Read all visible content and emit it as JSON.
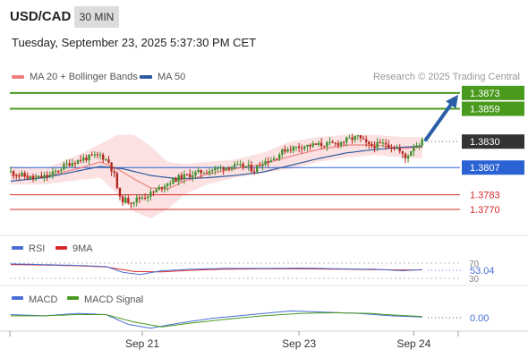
{
  "header": {
    "symbol": "USD/CAD",
    "timeframe": "30 MIN",
    "datetime": "Tuesday, September 23, 2025 5:37:30 PM CET"
  },
  "legend": {
    "items": [
      {
        "label": "MA 20 + Bollinger Bands",
        "color": "#f08080"
      },
      {
        "label": "MA 50",
        "color": "#2f5aa0"
      }
    ],
    "credit": "Research © 2025 Trading Central"
  },
  "chart_data": [
    {
      "type": "candlestick",
      "title": "USD/CAD",
      "ylim": [
        1.3751,
        1.388
      ],
      "n_bars": 150,
      "x_tick_labels": [
        {
          "label": "Sep 21",
          "bar": 47
        },
        {
          "label": "Sep 23",
          "bar": 103
        },
        {
          "label": "Sep 24",
          "bar": 144
        }
      ],
      "levels": [
        {
          "label": "1.3873",
          "value": 1.3873,
          "color": "#4a9a1e",
          "kind": "resistance"
        },
        {
          "label": "1.3859",
          "value": 1.3859,
          "color": "#4a9a1e",
          "kind": "resistance"
        },
        {
          "label": "1.3830",
          "value": 1.383,
          "color": "#333333",
          "kind": "last"
        },
        {
          "label": "1.3807",
          "value": 1.3807,
          "color": "#2b63d4",
          "kind": "pivot"
        },
        {
          "label": "1.3783",
          "value": 1.3783,
          "color": "#d62a2a",
          "kind": "support"
        },
        {
          "label": "1.3770",
          "value": 1.377,
          "color": "#d62a2a",
          "kind": "support"
        }
      ],
      "forecast_arrow": {
        "from": 1.383,
        "to": 1.3873,
        "color": "#2a5fa8"
      },
      "price_path": [
        [
          0,
          1.3803
        ],
        [
          8,
          1.3797
        ],
        [
          14,
          1.38
        ],
        [
          20,
          1.381
        ],
        [
          26,
          1.3815
        ],
        [
          32,
          1.3818
        ],
        [
          35,
          1.3812
        ],
        [
          37,
          1.38
        ],
        [
          39,
          1.3779
        ],
        [
          43,
          1.3777
        ],
        [
          47,
          1.3781
        ],
        [
          51,
          1.3785
        ],
        [
          55,
          1.3792
        ],
        [
          60,
          1.3798
        ],
        [
          66,
          1.3802
        ],
        [
          72,
          1.3805
        ],
        [
          78,
          1.3808
        ],
        [
          84,
          1.3808
        ],
        [
          87,
          1.3805
        ],
        [
          90,
          1.3812
        ],
        [
          94,
          1.3815
        ],
        [
          98,
          1.3823
        ],
        [
          104,
          1.3826
        ],
        [
          110,
          1.3827
        ],
        [
          116,
          1.3828
        ],
        [
          121,
          1.3832
        ],
        [
          124,
          1.3834
        ],
        [
          128,
          1.3826
        ],
        [
          134,
          1.3828
        ],
        [
          138,
          1.3824
        ],
        [
          141,
          1.3815
        ],
        [
          144,
          1.3826
        ],
        [
          147,
          1.383
        ]
      ],
      "ma20": [
        [
          0,
          1.38
        ],
        [
          12,
          1.3799
        ],
        [
          24,
          1.3806
        ],
        [
          32,
          1.3812
        ],
        [
          38,
          1.3806
        ],
        [
          44,
          1.3797
        ],
        [
          50,
          1.3789
        ],
        [
          56,
          1.3788
        ],
        [
          62,
          1.3795
        ],
        [
          70,
          1.3801
        ],
        [
          80,
          1.3806
        ],
        [
          90,
          1.381
        ],
        [
          100,
          1.3817
        ],
        [
          110,
          1.3823
        ],
        [
          120,
          1.3827
        ],
        [
          130,
          1.3827
        ],
        [
          140,
          1.3824
        ],
        [
          147,
          1.3825
        ]
      ],
      "bb_upper": [
        [
          0,
          1.3808
        ],
        [
          12,
          1.3806
        ],
        [
          24,
          1.3818
        ],
        [
          32,
          1.3828
        ],
        [
          38,
          1.3836
        ],
        [
          44,
          1.3836
        ],
        [
          50,
          1.3826
        ],
        [
          56,
          1.3812
        ],
        [
          62,
          1.381
        ],
        [
          70,
          1.3812
        ],
        [
          80,
          1.3814
        ],
        [
          90,
          1.382
        ],
        [
          100,
          1.383
        ],
        [
          110,
          1.3834
        ],
        [
          120,
          1.3836
        ],
        [
          130,
          1.3836
        ],
        [
          140,
          1.3834
        ],
        [
          147,
          1.3834
        ]
      ],
      "bb_lower": [
        [
          0,
          1.3792
        ],
        [
          12,
          1.3792
        ],
        [
          24,
          1.3796
        ],
        [
          32,
          1.3798
        ],
        [
          38,
          1.3784
        ],
        [
          44,
          1.3768
        ],
        [
          50,
          1.3762
        ],
        [
          56,
          1.377
        ],
        [
          62,
          1.3783
        ],
        [
          70,
          1.3792
        ],
        [
          80,
          1.3798
        ],
        [
          90,
          1.3802
        ],
        [
          100,
          1.3806
        ],
        [
          110,
          1.3812
        ],
        [
          120,
          1.3816
        ],
        [
          130,
          1.3818
        ],
        [
          140,
          1.3816
        ],
        [
          147,
          1.3815
        ]
      ],
      "ma50": [
        [
          0,
          1.3795
        ],
        [
          12,
          1.3798
        ],
        [
          24,
          1.3804
        ],
        [
          32,
          1.3808
        ],
        [
          40,
          1.3806
        ],
        [
          50,
          1.38
        ],
        [
          60,
          1.3797
        ],
        [
          70,
          1.3798
        ],
        [
          80,
          1.38
        ],
        [
          90,
          1.3803
        ],
        [
          100,
          1.3809
        ],
        [
          110,
          1.3815
        ],
        [
          120,
          1.382
        ],
        [
          130,
          1.3823
        ],
        [
          140,
          1.3825
        ],
        [
          147,
          1.3826
        ]
      ]
    },
    {
      "type": "line",
      "title": "RSI",
      "ylim": [
        30,
        70
      ],
      "levels": [
        70,
        30
      ],
      "tick_labels": [
        "70",
        "30"
      ],
      "current_label": "53.04",
      "series": [
        {
          "name": "RSI",
          "color": "#4a6fd6",
          "points": [
            [
              0,
              68
            ],
            [
              12,
              66
            ],
            [
              24,
              64
            ],
            [
              34,
              61
            ],
            [
              40,
              46
            ],
            [
              46,
              40
            ],
            [
              54,
              50
            ],
            [
              64,
              54
            ],
            [
              76,
              56
            ],
            [
              90,
              56
            ],
            [
              104,
              57
            ],
            [
              118,
              55
            ],
            [
              130,
              54
            ],
            [
              140,
              50
            ],
            [
              147,
              53
            ]
          ]
        },
        {
          "name": "9MA",
          "color": "#d62a2a",
          "points": [
            [
              0,
              66
            ],
            [
              12,
              65
            ],
            [
              24,
              63
            ],
            [
              34,
              60
            ],
            [
              44,
              48
            ],
            [
              54,
              47
            ],
            [
              64,
              51
            ],
            [
              76,
              54
            ],
            [
              90,
              55
            ],
            [
              104,
              55
            ],
            [
              118,
              54
            ],
            [
              130,
              53
            ],
            [
              140,
              52
            ],
            [
              147,
              52
            ]
          ]
        }
      ]
    },
    {
      "type": "line",
      "title": "MACD",
      "current_label": "0.00",
      "series": [
        {
          "name": "MACD",
          "color": "#4a6fd6",
          "points": [
            [
              0,
              0.2
            ],
            [
              12,
              0.1
            ],
            [
              24,
              0.3
            ],
            [
              34,
              0.2
            ],
            [
              42,
              -0.6
            ],
            [
              50,
              -0.9
            ],
            [
              60,
              -0.5
            ],
            [
              72,
              -0.1
            ],
            [
              86,
              0.2
            ],
            [
              100,
              0.5
            ],
            [
              112,
              0.4
            ],
            [
              124,
              0.3
            ],
            [
              136,
              0.1
            ],
            [
              147,
              0.0
            ]
          ]
        },
        {
          "name": "MACD Signal",
          "color": "#4a9a1e",
          "points": [
            [
              0,
              0.1
            ],
            [
              12,
              0.1
            ],
            [
              24,
              0.2
            ],
            [
              34,
              0.2
            ],
            [
              44,
              -0.4
            ],
            [
              54,
              -0.8
            ],
            [
              64,
              -0.5
            ],
            [
              76,
              -0.2
            ],
            [
              90,
              0.1
            ],
            [
              104,
              0.3
            ],
            [
              116,
              0.35
            ],
            [
              128,
              0.3
            ],
            [
              138,
              0.15
            ],
            [
              147,
              0.05
            ]
          ]
        }
      ]
    }
  ]
}
